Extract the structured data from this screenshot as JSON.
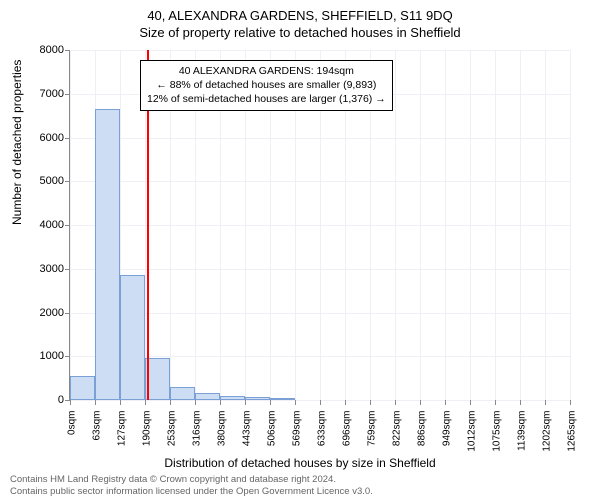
{
  "title_main": "40, ALEXANDRA GARDENS, SHEFFIELD, S11 9DQ",
  "title_sub": "Size of property relative to detached houses in Sheffield",
  "y_label": "Number of detached properties",
  "x_label": "Distribution of detached houses by size in Sheffield",
  "footer_line1": "Contains HM Land Registry data © Crown copyright and database right 2024.",
  "footer_line2": "Contains public sector information licensed under the Open Government Licence v3.0.",
  "annotation": {
    "line1": "40 ALEXANDRA GARDENS: 194sqm",
    "line2": "← 88% of detached houses are smaller (9,893)",
    "line3": "12% of semi-detached houses are larger (1,376) →"
  },
  "chart": {
    "type": "histogram",
    "ylim": [
      0,
      8000
    ],
    "xlim": [
      0,
      1265
    ],
    "ytick_step": 1000,
    "x_ticks": [
      0,
      63,
      127,
      190,
      253,
      316,
      380,
      443,
      506,
      569,
      633,
      696,
      759,
      822,
      886,
      949,
      1012,
      1075,
      1139,
      1202,
      1265
    ],
    "x_tick_suffix": "sqm",
    "marker_x": 194,
    "marker_color": "#ff0000",
    "bar_fill": "#ccddf4",
    "bar_stroke": "#7aa0d6",
    "grid_color": "#eef0f5",
    "bg": "#ffffff",
    "bars": [
      {
        "x0": 0,
        "x1": 63,
        "v": 550
      },
      {
        "x0": 63,
        "x1": 127,
        "v": 6650
      },
      {
        "x0": 127,
        "x1": 190,
        "v": 2850
      },
      {
        "x0": 190,
        "x1": 253,
        "v": 950
      },
      {
        "x0": 253,
        "x1": 316,
        "v": 300
      },
      {
        "x0": 316,
        "x1": 380,
        "v": 150
      },
      {
        "x0": 380,
        "x1": 443,
        "v": 90
      },
      {
        "x0": 443,
        "x1": 506,
        "v": 70
      },
      {
        "x0": 506,
        "x1": 569,
        "v": 50
      }
    ]
  },
  "style": {
    "title_fontsize": 13,
    "label_fontsize": 12,
    "tick_fontsize": 11,
    "footer_fontsize": 9.5,
    "annotation_fontsize": 10.5
  }
}
